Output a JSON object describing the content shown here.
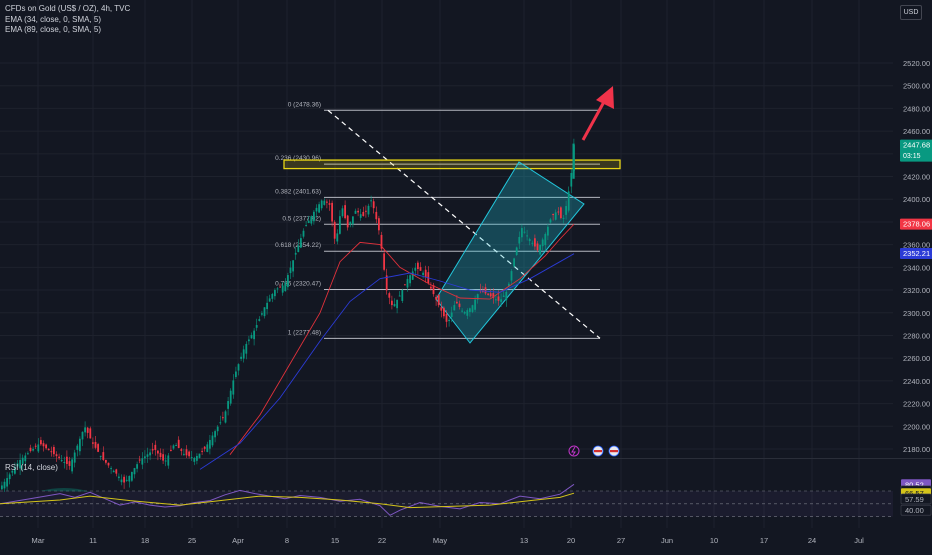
{
  "header": {
    "symbol_line": "CFDs on Gold (US$ / OZ), 4h, TVC",
    "indicators": [
      "EMA (34, close, 0, SMA, 5)",
      "EMA (89, close, 0, SMA, 5)"
    ],
    "currency": "USD"
  },
  "colors": {
    "bg": "#131722",
    "grid": "#1e222d",
    "up": "#089981",
    "down": "#f23645",
    "ema34": "#e0313b",
    "ema89": "#2b3bd6",
    "fib": "#d1d4dc",
    "channel": "#22c6db",
    "highlight": "#e8d515",
    "arrow": "#f0334a",
    "rsi": "#7e57c2",
    "rsi_ma": "#d4c41a"
  },
  "chart_data": {
    "type": "candlestick",
    "title": "CFDs on Gold (US$ / OZ), 4h, TVC",
    "xlabel": "",
    "ylabel": "",
    "x_ticks": [
      "Mar",
      "11",
      "18",
      "25",
      "Apr",
      "8",
      "15",
      "22",
      "May",
      "13",
      "20",
      "27",
      "Jun",
      "10",
      "17",
      "24",
      "Jul"
    ],
    "y_ticks": [
      2180,
      2200,
      2220,
      2240,
      2260,
      2280,
      2300,
      2320,
      2340,
      2360,
      2380,
      2400,
      2420,
      2440,
      2460,
      2480,
      2500,
      2520
    ],
    "ylim": [
      2160,
      2532
    ],
    "price_path": [
      [
        0,
        2145
      ],
      [
        20,
        2170
      ],
      [
        40,
        2185
      ],
      [
        55,
        2175
      ],
      [
        70,
        2165
      ],
      [
        85,
        2200
      ],
      [
        93,
        2185
      ],
      [
        104,
        2170
      ],
      [
        115,
        2160
      ],
      [
        125,
        2150
      ],
      [
        140,
        2170
      ],
      [
        155,
        2180
      ],
      [
        165,
        2168
      ],
      [
        175,
        2185
      ],
      [
        185,
        2175
      ],
      [
        195,
        2172
      ],
      [
        205,
        2180
      ],
      [
        215,
        2195
      ],
      [
        225,
        2210
      ],
      [
        235,
        2245
      ],
      [
        245,
        2270
      ],
      [
        255,
        2285
      ],
      [
        265,
        2305
      ],
      [
        275,
        2320
      ],
      [
        285,
        2325
      ],
      [
        295,
        2350
      ],
      [
        305,
        2375
      ],
      [
        315,
        2390
      ],
      [
        323,
        2400
      ],
      [
        330,
        2395
      ],
      [
        336,
        2360
      ],
      [
        342,
        2395
      ],
      [
        348,
        2375
      ],
      [
        356,
        2390
      ],
      [
        364,
        2385
      ],
      [
        372,
        2400
      ],
      [
        380,
        2370
      ],
      [
        387,
        2320
      ],
      [
        393,
        2305
      ],
      [
        400,
        2315
      ],
      [
        408,
        2330
      ],
      [
        416,
        2340
      ],
      [
        424,
        2335
      ],
      [
        432,
        2320
      ],
      [
        440,
        2305
      ],
      [
        448,
        2290
      ],
      [
        456,
        2310
      ],
      [
        464,
        2300
      ],
      [
        472,
        2305
      ],
      [
        480,
        2320
      ],
      [
        490,
        2315
      ],
      [
        500,
        2310
      ],
      [
        508,
        2320
      ],
      [
        515,
        2350
      ],
      [
        522,
        2375
      ],
      [
        530,
        2365
      ],
      [
        538,
        2355
      ],
      [
        546,
        2370
      ],
      [
        552,
        2385
      ],
      [
        558,
        2390
      ],
      [
        563,
        2380
      ],
      [
        568,
        2400
      ],
      [
        572,
        2425
      ],
      [
        574,
        2447.68
      ]
    ],
    "series": [
      {
        "name": "EMA (34, close, 0, SMA, 5)",
        "last": 2378.06,
        "path": [
          [
            230,
            2175
          ],
          [
            260,
            2210
          ],
          [
            290,
            2255
          ],
          [
            320,
            2300
          ],
          [
            340,
            2345
          ],
          [
            360,
            2362
          ],
          [
            380,
            2360
          ],
          [
            400,
            2340
          ],
          [
            430,
            2325
          ],
          [
            460,
            2313
          ],
          [
            490,
            2312
          ],
          [
            520,
            2330
          ],
          [
            545,
            2350
          ],
          [
            560,
            2365
          ],
          [
            574,
            2378
          ]
        ]
      },
      {
        "name": "EMA (89, close, 0, SMA, 5)",
        "last": 2352.21,
        "path": [
          [
            200,
            2162
          ],
          [
            240,
            2185
          ],
          [
            280,
            2225
          ],
          [
            320,
            2275
          ],
          [
            350,
            2310
          ],
          [
            380,
            2330
          ],
          [
            410,
            2335
          ],
          [
            440,
            2328
          ],
          [
            470,
            2320
          ],
          [
            500,
            2318
          ],
          [
            530,
            2330
          ],
          [
            560,
            2345
          ],
          [
            574,
            2352
          ]
        ]
      }
    ],
    "price_labels": [
      {
        "text": "2447.68",
        "sub": "03:15",
        "value": 2447.68,
        "color": "#089981"
      },
      {
        "text": "2378.06",
        "value": 2378.06,
        "color": "#f23645"
      },
      {
        "text": "2352.21",
        "value": 2352.21,
        "color": "#2b3bd6"
      }
    ],
    "fib_levels": [
      {
        "label": "0 (2478.36)",
        "value": 2478.36
      },
      {
        "label": "0.236 (2430.96)",
        "value": 2430.96
      },
      {
        "label": "0.382 (2401.63)",
        "value": 2401.63
      },
      {
        "label": "0.5 (2377.92)",
        "value": 2377.92
      },
      {
        "label": "0.618 (2354.22)",
        "value": 2354.22
      },
      {
        "label": "0.786 (2320.47)",
        "value": 2320.47
      },
      {
        "label": "1 (2277.48)",
        "value": 2277.48
      }
    ],
    "rsi": {
      "title": "RSI (14, close)",
      "labels": [
        {
          "text": "80.52",
          "value": 80.52,
          "color": "#7e57c2"
        },
        {
          "text": "70.34",
          "value": 70.34,
          "color": "#131722"
        },
        {
          "text": "66.57",
          "value": 66.57,
          "color": "#d4c41a"
        },
        {
          "text": "57.59",
          "value": 57.59,
          "color": "#131722"
        },
        {
          "text": "40.00",
          "value": 40.0,
          "color": "#131722"
        }
      ],
      "path": [
        [
          0,
          50
        ],
        [
          30,
          58
        ],
        [
          60,
          66
        ],
        [
          75,
          60
        ],
        [
          90,
          68
        ],
        [
          105,
          58
        ],
        [
          120,
          48
        ],
        [
          135,
          53
        ],
        [
          150,
          48
        ],
        [
          165,
          45
        ],
        [
          180,
          47
        ],
        [
          195,
          52
        ],
        [
          210,
          55
        ],
        [
          225,
          64
        ],
        [
          240,
          71
        ],
        [
          255,
          66
        ],
        [
          270,
          62
        ],
        [
          285,
          58
        ],
        [
          300,
          63
        ],
        [
          320,
          60
        ],
        [
          340,
          54
        ],
        [
          360,
          57
        ],
        [
          380,
          47
        ],
        [
          390,
          32
        ],
        [
          400,
          40
        ],
        [
          420,
          52
        ],
        [
          440,
          46
        ],
        [
          460,
          42
        ],
        [
          480,
          52
        ],
        [
          500,
          50
        ],
        [
          520,
          62
        ],
        [
          540,
          58
        ],
        [
          560,
          65
        ],
        [
          574,
          80.5
        ]
      ],
      "ma_path": [
        [
          0,
          50
        ],
        [
          60,
          56
        ],
        [
          90,
          62
        ],
        [
          130,
          55
        ],
        [
          180,
          48
        ],
        [
          220,
          55
        ],
        [
          260,
          62
        ],
        [
          300,
          60
        ],
        [
          340,
          56
        ],
        [
          380,
          50
        ],
        [
          410,
          44
        ],
        [
          450,
          46
        ],
        [
          490,
          48
        ],
        [
          530,
          55
        ],
        [
          560,
          60
        ],
        [
          574,
          66.57
        ]
      ]
    }
  }
}
